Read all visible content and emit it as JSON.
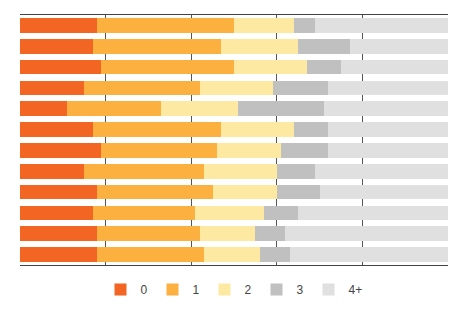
{
  "chart_data": {
    "type": "bar",
    "orientation": "horizontal",
    "stacked": true,
    "categories": [
      null,
      null,
      null,
      null,
      null,
      null,
      null,
      null,
      null,
      null,
      null,
      null
    ],
    "series": [
      {
        "name": "0",
        "color": "#f26522",
        "values": [
          18,
          17,
          19,
          15,
          11,
          17,
          19,
          15,
          18,
          17,
          18,
          18
        ]
      },
      {
        "name": "1",
        "color": "#fbb040",
        "values": [
          32,
          30,
          31,
          27,
          22,
          30,
          27,
          28,
          27,
          24,
          24,
          25
        ]
      },
      {
        "name": "2",
        "color": "#fde9a2",
        "values": [
          14,
          18,
          17,
          17,
          18,
          17,
          15,
          17,
          15,
          16,
          13,
          13
        ]
      },
      {
        "name": "3",
        "color": "#c0c0c0",
        "values": [
          5,
          12,
          8,
          13,
          20,
          8,
          11,
          9,
          10,
          8,
          7,
          7
        ]
      },
      {
        "name": "4+",
        "color": "#e0e0e0",
        "values": [
          31,
          23,
          25,
          28,
          29,
          28,
          28,
          31,
          30,
          35,
          38,
          37
        ]
      }
    ],
    "xlim": [
      0,
      100
    ],
    "xticks": [
      20,
      40,
      60,
      80
    ],
    "grid": true,
    "tick_labels": false,
    "legend": "bottom"
  }
}
